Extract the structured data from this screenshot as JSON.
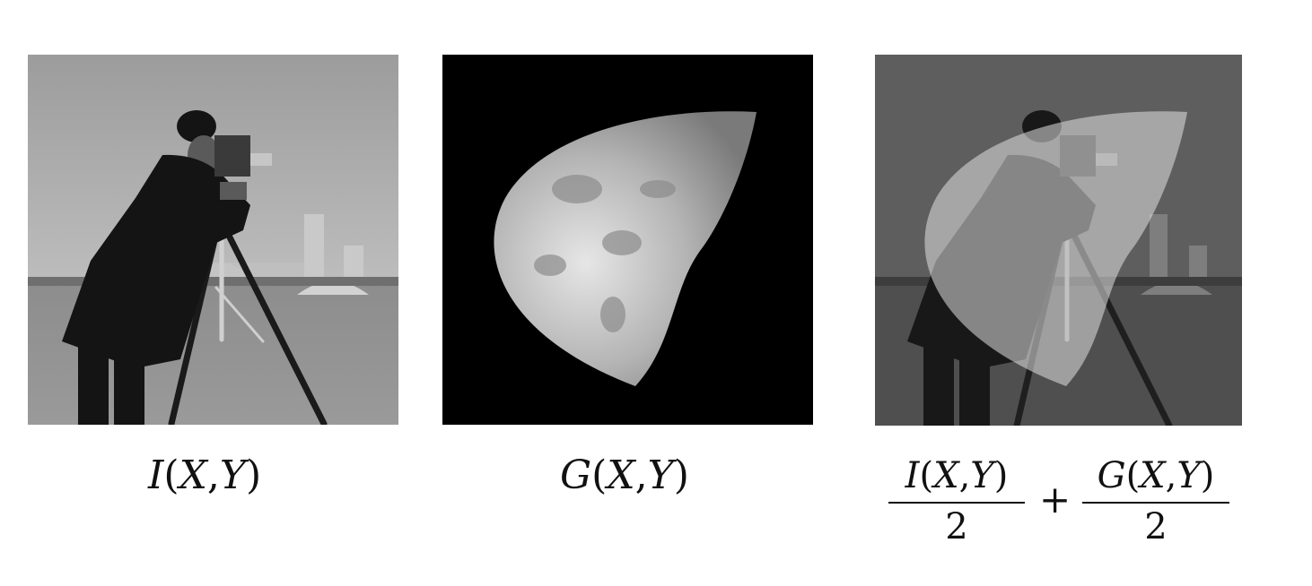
{
  "panels": [
    {
      "id": "panel-camera",
      "caption": "I(X,Y)",
      "caption_parts": {
        "fn": "I",
        "open": "(",
        "x": "X",
        "comma": ",",
        "y": "Y",
        "close": ")"
      },
      "content": "photograph-cameraman"
    },
    {
      "id": "panel-moon",
      "caption": "G(X,Y)",
      "caption_parts": {
        "fn": "G",
        "open": "(",
        "x": "X",
        "comma": ",",
        "y": "Y",
        "close": ")"
      },
      "content": "photograph-moon"
    },
    {
      "id": "panel-blend",
      "caption": "I(X,Y)/2 + G(X,Y)/2",
      "content": "blended-photograph"
    }
  ],
  "equation": {
    "left_numerator": {
      "fn": "I",
      "open": "(",
      "x": "X",
      "comma": ",",
      "y": "Y",
      "close": ")"
    },
    "left_denominator": "2",
    "operator": "+",
    "right_numerator": {
      "fn": "G",
      "open": "(",
      "x": "X",
      "comma": ",",
      "y": "Y",
      "close": ")"
    },
    "right_denominator": "2"
  },
  "colors": {
    "background": "#ffffff",
    "text": "#111111",
    "moon_background": "#000000"
  }
}
